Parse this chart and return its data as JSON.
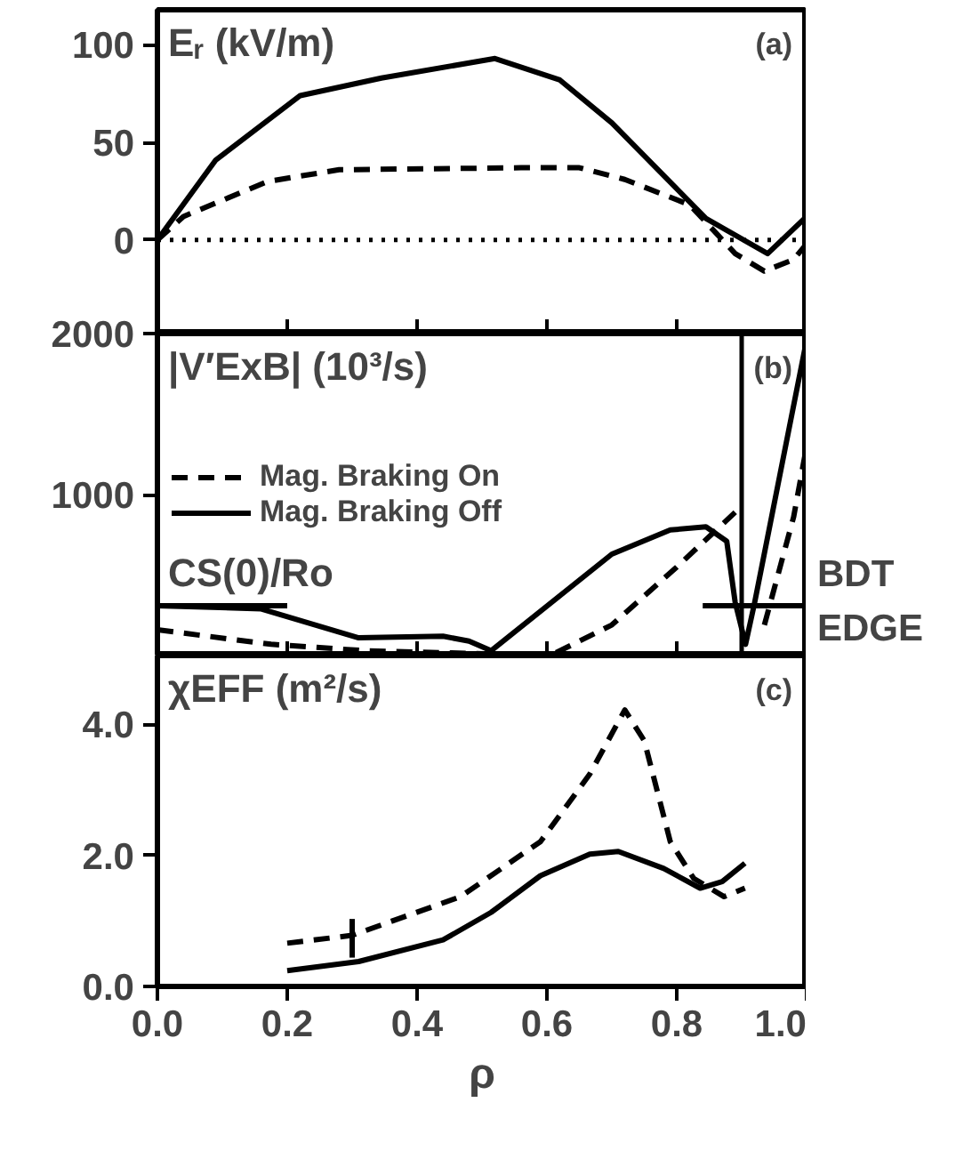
{
  "chart_data": [
    {
      "type": "line",
      "title": "Eᵣ (kV/m)",
      "annotations": [
        "(a)"
      ],
      "xlim": [
        0,
        1.0
      ],
      "xticks": [
        {
          "value": 0,
          "label": null
        },
        {
          "value": 0.2,
          "label": null
        },
        {
          "value": 0.4,
          "label": null
        },
        {
          "value": 0.6,
          "label": null
        },
        {
          "value": 0.8,
          "label": null
        },
        {
          "value": 1.0,
          "label": null
        }
      ],
      "ylim": [
        -48,
        118
      ],
      "yticks": [
        0,
        50,
        100
      ],
      "tick_labels": "y",
      "series": [
        {
          "color": "#000000",
          "line_style": "solid",
          "x": [
            0,
            0.09,
            0.22,
            0.345,
            0.52,
            0.62,
            0.7,
            0.845,
            0.94,
            1.0
          ],
          "values": [
            0,
            41,
            74,
            83,
            93,
            82,
            60,
            11,
            -7,
            12
          ]
        },
        {
          "color": "#000000",
          "line_style": "dashed",
          "x": [
            0,
            0.04,
            0.17,
            0.28,
            0.56,
            0.65,
            0.72,
            0.82,
            0.89,
            0.935,
            0.98,
            1.0
          ],
          "values": [
            0,
            12,
            30,
            36,
            37,
            37,
            31,
            18,
            -7,
            -16,
            -10,
            -2
          ]
        }
      ],
      "ref_lines": [
        {
          "axis": "y",
          "value": 0,
          "line_style": "dotted",
          "color": "#000000"
        }
      ]
    },
    {
      "type": "line",
      "title": "|V′ExB| (10³/s)",
      "annotations": [
        "(b)",
        {
          "text": "CS(0)/Ro",
          "x": 0.0,
          "y": 310
        },
        {
          "text": "BDT",
          "x": 1.0,
          "y": 310
        }
      ],
      "xlim": [
        0,
        1.0
      ],
      "xticks": [
        {
          "value": 0,
          "label": null
        },
        {
          "value": 0.2,
          "label": null
        },
        {
          "value": 0.4,
          "label": null
        },
        {
          "value": 0.6,
          "label": null
        },
        {
          "value": 0.8,
          "label": null
        },
        {
          "value": 1.0,
          "label": null
        }
      ],
      "ylim": [
        0,
        2000
      ],
      "yticks": [
        1000,
        2000
      ],
      "tick_labels": "y",
      "legend": "left",
      "series": [
        {
          "name": "Mag. Braking On",
          "color": "#000000",
          "line_style": "dashed",
          "x": [
            0,
            0.175,
            0.32,
            0.514,
            0.61,
            0.7,
            0.8,
            0.89,
            null,
            0.935,
            0.98,
            1.0
          ],
          "values": [
            160,
            70,
            30,
            10,
            10,
            190,
            550,
            890,
            null,
            190,
            860,
            1300
          ]
        },
        {
          "name": "Mag. Braking Off",
          "color": "#000000",
          "line_style": "solid",
          "x": [
            0,
            0.16,
            0.31,
            0.44,
            0.48,
            0.514,
            0.7,
            0.79,
            0.845,
            0.877,
            0.89,
            0.906,
            0.92,
            1.0
          ],
          "values": [
            310,
            290,
            110,
            120,
            90,
            30,
            630,
            780,
            800,
            710,
            330,
            70,
            330,
            1960
          ]
        },
        {
          "color": "#000000",
          "line_style": "solid",
          "x": [
            0,
            0.2,
            0.5,
            0.84,
            1.0
          ],
          "values": [
            310,
            310,
            null,
            310,
            310
          ]
        }
      ],
      "ref_lines": [
        {
          "axis": "x",
          "value": 0.9,
          "label": "EDGE",
          "color": "#000000",
          "line_style": "solid"
        }
      ]
    },
    {
      "type": "line",
      "title": "χEFF (m²/s)",
      "annotations": [
        "(c)"
      ],
      "xlabel": "ρ",
      "xlim": [
        0,
        1.0
      ],
      "xticks": [
        {
          "value": 0,
          "label": "0.0"
        },
        0.2,
        0.4,
        0.6,
        0.8,
        {
          "value": 1.0,
          "label": "1.0"
        }
      ],
      "ylim": [
        0,
        5.05
      ],
      "yticks": [
        {
          "value": 0,
          "label": "0.0"
        },
        {
          "value": 2,
          "label": "2.0"
        },
        {
          "value": 4,
          "label": "4.0"
        }
      ],
      "series": [
        {
          "color": "#000000",
          "line_style": "solid",
          "x": [
            0.2,
            0.31,
            0.44,
            0.514,
            0.59,
            0.666,
            0.71,
            0.78,
            0.836,
            0.87,
            0.905
          ],
          "values": [
            0.24,
            0.38,
            0.71,
            1.13,
            1.69,
            2.02,
            2.06,
            1.8,
            1.5,
            1.6,
            1.88
          ]
        },
        {
          "color": "#000000",
          "line_style": "dashed",
          "x": [
            0.2,
            0.3,
            0.467,
            0.59,
            0.666,
            0.72,
            0.75,
            0.79,
            0.826,
            0.873,
            0.905
          ],
          "values": [
            0.66,
            0.78,
            1.37,
            2.21,
            3.24,
            4.22,
            3.75,
            2.21,
            1.65,
            1.37,
            1.5
          ],
          "errors": [
            null,
            [
              0.44,
              1.03
            ],
            null,
            null,
            null,
            null,
            null,
            null,
            null,
            null,
            null
          ]
        }
      ]
    }
  ]
}
